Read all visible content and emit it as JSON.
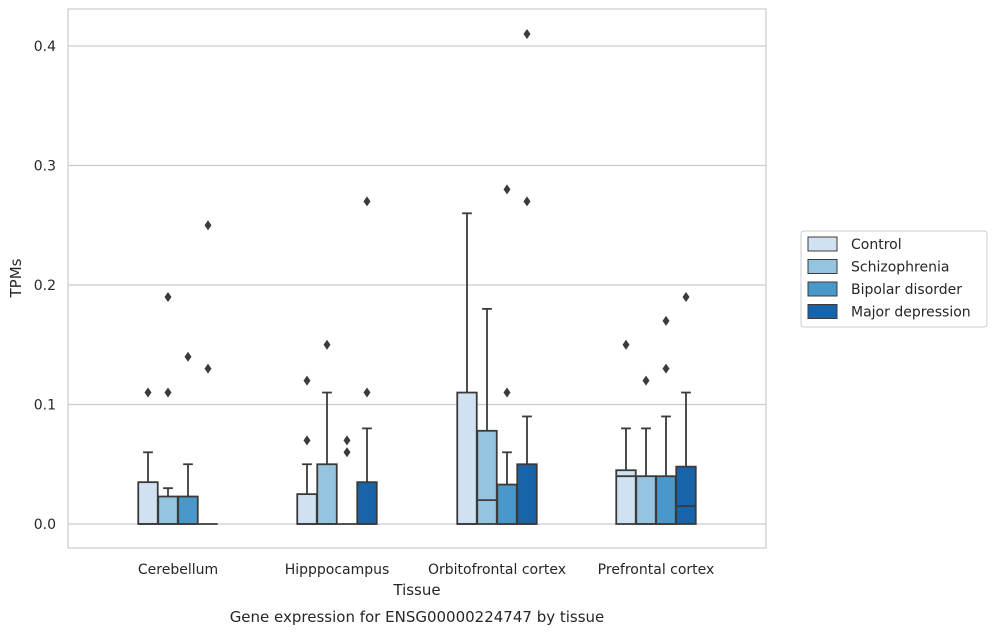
{
  "chart_data": {
    "type": "box",
    "title": "",
    "caption": "Gene expression for ENSG00000224747 by tissue",
    "xlabel": "Tissue",
    "ylabel": "TPMs",
    "ylim": [
      -0.02,
      0.43
    ],
    "yticks": [
      0.0,
      0.1,
      0.2,
      0.3,
      0.4
    ],
    "ytick_labels": [
      "0.0",
      "0.1",
      "0.2",
      "0.3",
      "0.4"
    ],
    "grid": "horizontal",
    "legend_position": "right",
    "categories": [
      "Cerebellum",
      "Hipppocampus",
      "Orbitofrontal cortex",
      "Prefrontal cortex"
    ],
    "series": [
      {
        "name": "Control",
        "color": "#d0e1f2",
        "boxes": [
          {
            "q1": 0.0,
            "median": 0.0,
            "q3": 0.035,
            "whisker_low": 0.0,
            "whisker_high": 0.06,
            "outliers": [
              0.11
            ]
          },
          {
            "q1": 0.0,
            "median": 0.0,
            "q3": 0.025,
            "whisker_low": 0.0,
            "whisker_high": 0.05,
            "outliers": [
              0.07,
              0.12
            ]
          },
          {
            "q1": 0.0,
            "median": 0.0,
            "q3": 0.11,
            "whisker_low": 0.0,
            "whisker_high": 0.26,
            "outliers": []
          },
          {
            "q1": 0.0,
            "median": 0.04,
            "q3": 0.045,
            "whisker_low": 0.0,
            "whisker_high": 0.08,
            "outliers": [
              0.15
            ]
          }
        ]
      },
      {
        "name": "Schizophrenia",
        "color": "#94c4df",
        "boxes": [
          {
            "q1": 0.0,
            "median": 0.0,
            "q3": 0.023,
            "whisker_low": 0.0,
            "whisker_high": 0.03,
            "outliers": [
              0.11,
              0.19
            ]
          },
          {
            "q1": 0.0,
            "median": 0.0,
            "q3": 0.05,
            "whisker_low": 0.0,
            "whisker_high": 0.11,
            "outliers": [
              0.15
            ]
          },
          {
            "q1": 0.0,
            "median": 0.02,
            "q3": 0.078,
            "whisker_low": 0.0,
            "whisker_high": 0.18,
            "outliers": []
          },
          {
            "q1": 0.0,
            "median": 0.0,
            "q3": 0.04,
            "whisker_low": 0.0,
            "whisker_high": 0.08,
            "outliers": [
              0.12
            ]
          }
        ]
      },
      {
        "name": "Bipolar disorder",
        "color": "#4a98c9",
        "boxes": [
          {
            "q1": 0.0,
            "median": 0.0,
            "q3": 0.023,
            "whisker_low": 0.0,
            "whisker_high": 0.05,
            "outliers": [
              0.14
            ]
          },
          {
            "q1": 0.0,
            "median": 0.0,
            "q3": 0.0,
            "whisker_low": 0.0,
            "whisker_high": 0.0,
            "outliers": [
              0.06,
              0.07
            ]
          },
          {
            "q1": 0.0,
            "median": 0.0,
            "q3": 0.033,
            "whisker_low": 0.0,
            "whisker_high": 0.06,
            "outliers": [
              0.11,
              0.28
            ]
          },
          {
            "q1": 0.0,
            "median": 0.0,
            "q3": 0.04,
            "whisker_low": 0.0,
            "whisker_high": 0.09,
            "outliers": [
              0.13,
              0.17
            ]
          }
        ]
      },
      {
        "name": "Major depression",
        "color": "#1764ab",
        "boxes": [
          {
            "q1": 0.0,
            "median": 0.0,
            "q3": 0.0,
            "whisker_low": 0.0,
            "whisker_high": 0.0,
            "outliers": [
              0.13,
              0.25
            ]
          },
          {
            "q1": 0.0,
            "median": 0.0,
            "q3": 0.035,
            "whisker_low": 0.0,
            "whisker_high": 0.08,
            "outliers": [
              0.11,
              0.27
            ]
          },
          {
            "q1": 0.0,
            "median": 0.0,
            "q3": 0.05,
            "whisker_low": 0.0,
            "whisker_high": 0.09,
            "outliers": [
              0.27,
              0.41
            ]
          },
          {
            "q1": 0.0,
            "median": 0.015,
            "q3": 0.048,
            "whisker_low": 0.0,
            "whisker_high": 0.11,
            "outliers": [
              0.19
            ]
          }
        ]
      }
    ]
  }
}
